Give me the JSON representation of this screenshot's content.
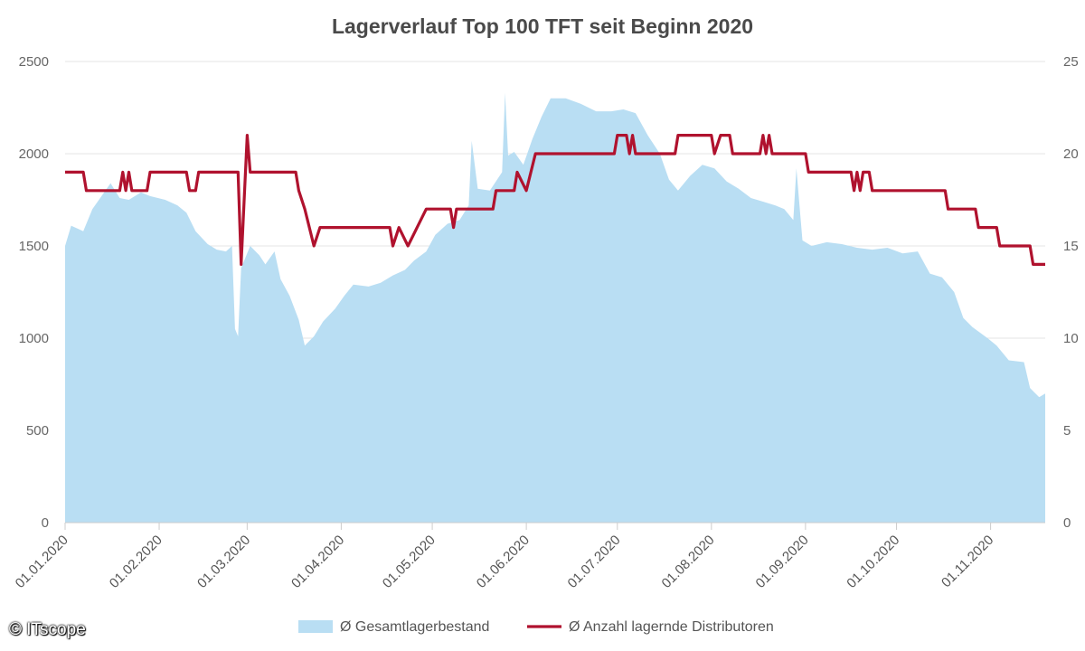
{
  "chart_data": {
    "type": "area+line",
    "title": "Lagerverlauf Top 100 TFT seit Beginn 2020",
    "x_start": "01.01.2020",
    "x_end": "19.11.2020",
    "x_ticks": [
      "01.01.2020",
      "01.02.2020",
      "01.03.2020",
      "01.04.2020",
      "01.05.2020",
      "01.06.2020",
      "01.07.2020",
      "01.08.2020",
      "01.09.2020",
      "01.10.2020",
      "01.11.2020"
    ],
    "y_left": {
      "min": 0,
      "max": 2500,
      "ticks": [
        0,
        500,
        1000,
        1500,
        2000,
        2500
      ]
    },
    "y_right": {
      "min": 0,
      "max": 25,
      "ticks": [
        0,
        5,
        10,
        15,
        20,
        25
      ]
    },
    "grid": true,
    "legend_position": "bottom",
    "series": [
      {
        "name": "Ø Gesamtlagerbestand",
        "type": "area",
        "axis": "left",
        "color": "#b9def3",
        "points": [
          [
            "01.01.2020",
            1500
          ],
          [
            "03.01.2020",
            1610
          ],
          [
            "07.01.2020",
            1580
          ],
          [
            "10.01.2020",
            1700
          ],
          [
            "13.01.2020",
            1770
          ],
          [
            "16.01.2020",
            1840
          ],
          [
            "19.01.2020",
            1760
          ],
          [
            "22.01.2020",
            1750
          ],
          [
            "26.01.2020",
            1790
          ],
          [
            "29.01.2020",
            1770
          ],
          [
            "03.02.2020",
            1750
          ],
          [
            "07.02.2020",
            1720
          ],
          [
            "10.02.2020",
            1680
          ],
          [
            "13.02.2020",
            1580
          ],
          [
            "17.02.2020",
            1510
          ],
          [
            "20.02.2020",
            1480
          ],
          [
            "23.02.2020",
            1470
          ],
          [
            "25.02.2020",
            1500
          ],
          [
            "26.02.2020",
            1050
          ],
          [
            "27.02.2020",
            1010
          ],
          [
            "28.02.2020",
            1380
          ],
          [
            "02.03.2020",
            1500
          ],
          [
            "05.03.2020",
            1450
          ],
          [
            "07.03.2020",
            1400
          ],
          [
            "10.03.2020",
            1470
          ],
          [
            "12.03.2020",
            1320
          ],
          [
            "15.03.2020",
            1230
          ],
          [
            "18.03.2020",
            1100
          ],
          [
            "20.03.2020",
            960
          ],
          [
            "23.03.2020",
            1010
          ],
          [
            "26.03.2020",
            1090
          ],
          [
            "30.03.2020",
            1160
          ],
          [
            "02.04.2020",
            1230
          ],
          [
            "05.04.2020",
            1290
          ],
          [
            "10.04.2020",
            1280
          ],
          [
            "14.04.2020",
            1300
          ],
          [
            "18.04.2020",
            1340
          ],
          [
            "22.04.2020",
            1370
          ],
          [
            "25.04.2020",
            1420
          ],
          [
            "29.04.2020",
            1470
          ],
          [
            "02.05.2020",
            1560
          ],
          [
            "06.05.2020",
            1620
          ],
          [
            "10.05.2020",
            1640
          ],
          [
            "13.05.2020",
            1720
          ],
          [
            "14.05.2020",
            2070
          ],
          [
            "16.05.2020",
            1810
          ],
          [
            "20.05.2020",
            1800
          ],
          [
            "24.05.2020",
            1900
          ],
          [
            "25.05.2020",
            2330
          ],
          [
            "26.05.2020",
            1990
          ],
          [
            "28.05.2020",
            2010
          ],
          [
            "31.05.2020",
            1940
          ],
          [
            "03.06.2020",
            2080
          ],
          [
            "06.06.2020",
            2200
          ],
          [
            "09.06.2020",
            2300
          ],
          [
            "14.06.2020",
            2300
          ],
          [
            "19.06.2020",
            2270
          ],
          [
            "24.06.2020",
            2230
          ],
          [
            "29.06.2020",
            2230
          ],
          [
            "03.07.2020",
            2240
          ],
          [
            "07.07.2020",
            2220
          ],
          [
            "11.07.2020",
            2100
          ],
          [
            "15.07.2020",
            2000
          ],
          [
            "18.07.2020",
            1860
          ],
          [
            "21.07.2020",
            1800
          ],
          [
            "25.07.2020",
            1880
          ],
          [
            "29.07.2020",
            1940
          ],
          [
            "02.08.2020",
            1920
          ],
          [
            "06.08.2020",
            1850
          ],
          [
            "10.08.2020",
            1810
          ],
          [
            "14.08.2020",
            1760
          ],
          [
            "18.08.2020",
            1740
          ],
          [
            "22.08.2020",
            1720
          ],
          [
            "25.08.2020",
            1700
          ],
          [
            "28.08.2020",
            1640
          ],
          [
            "29.08.2020",
            1920
          ],
          [
            "31.08.2020",
            1530
          ],
          [
            "03.09.2020",
            1500
          ],
          [
            "08.09.2020",
            1520
          ],
          [
            "13.09.2020",
            1510
          ],
          [
            "18.09.2020",
            1490
          ],
          [
            "23.09.2020",
            1480
          ],
          [
            "28.09.2020",
            1490
          ],
          [
            "03.10.2020",
            1460
          ],
          [
            "08.10.2020",
            1470
          ],
          [
            "12.10.2020",
            1350
          ],
          [
            "16.10.2020",
            1330
          ],
          [
            "20.10.2020",
            1250
          ],
          [
            "23.10.2020",
            1110
          ],
          [
            "26.10.2020",
            1060
          ],
          [
            "31.10.2020",
            1000
          ],
          [
            "03.11.2020",
            960
          ],
          [
            "07.11.2020",
            880
          ],
          [
            "12.11.2020",
            870
          ],
          [
            "14.11.2020",
            730
          ],
          [
            "17.11.2020",
            680
          ],
          [
            "19.11.2020",
            700
          ]
        ]
      },
      {
        "name": "Ø Anzahl lagernde Distributoren",
        "type": "line",
        "axis": "right",
        "color": "#b0122e",
        "points": [
          [
            "01.01.2020",
            19
          ],
          [
            "07.01.2020",
            19
          ],
          [
            "08.01.2020",
            18
          ],
          [
            "19.01.2020",
            18
          ],
          [
            "20.01.2020",
            19
          ],
          [
            "21.01.2020",
            18
          ],
          [
            "22.01.2020",
            19
          ],
          [
            "23.01.2020",
            18
          ],
          [
            "28.01.2020",
            18
          ],
          [
            "29.01.2020",
            19
          ],
          [
            "10.02.2020",
            19
          ],
          [
            "11.02.2020",
            18
          ],
          [
            "13.02.2020",
            18
          ],
          [
            "14.02.2020",
            19
          ],
          [
            "27.02.2020",
            19
          ],
          [
            "28.02.2020",
            14
          ],
          [
            "01.03.2020",
            21
          ],
          [
            "02.03.2020",
            19
          ],
          [
            "17.03.2020",
            19
          ],
          [
            "18.03.2020",
            18
          ],
          [
            "20.03.2020",
            17
          ],
          [
            "23.03.2020",
            15
          ],
          [
            "25.03.2020",
            16
          ],
          [
            "17.04.2020",
            16
          ],
          [
            "18.04.2020",
            15
          ],
          [
            "20.04.2020",
            16
          ],
          [
            "23.04.2020",
            15
          ],
          [
            "26.04.2020",
            16
          ],
          [
            "29.04.2020",
            17
          ],
          [
            "07.05.2020",
            17
          ],
          [
            "08.05.2020",
            16
          ],
          [
            "09.05.2020",
            17
          ],
          [
            "21.05.2020",
            17
          ],
          [
            "22.05.2020",
            18
          ],
          [
            "28.05.2020",
            18
          ],
          [
            "29.05.2020",
            19
          ],
          [
            "01.06.2020",
            18
          ],
          [
            "04.06.2020",
            20
          ],
          [
            "30.06.2020",
            20
          ],
          [
            "01.07.2020",
            21
          ],
          [
            "04.07.2020",
            21
          ],
          [
            "05.07.2020",
            20
          ],
          [
            "06.07.2020",
            21
          ],
          [
            "07.07.2020",
            20
          ],
          [
            "20.07.2020",
            20
          ],
          [
            "21.07.2020",
            21
          ],
          [
            "01.08.2020",
            21
          ],
          [
            "02.08.2020",
            20
          ],
          [
            "04.08.2020",
            21
          ],
          [
            "07.08.2020",
            21
          ],
          [
            "08.08.2020",
            20
          ],
          [
            "17.08.2020",
            20
          ],
          [
            "18.08.2020",
            21
          ],
          [
            "19.08.2020",
            20
          ],
          [
            "20.08.2020",
            21
          ],
          [
            "21.08.2020",
            20
          ],
          [
            "01.09.2020",
            20
          ],
          [
            "02.09.2020",
            19
          ],
          [
            "16.09.2020",
            19
          ],
          [
            "17.09.2020",
            18
          ],
          [
            "18.09.2020",
            19
          ],
          [
            "19.09.2020",
            18
          ],
          [
            "20.09.2020",
            19
          ],
          [
            "22.09.2020",
            19
          ],
          [
            "23.09.2020",
            18
          ],
          [
            "17.10.2020",
            18
          ],
          [
            "18.10.2020",
            17
          ],
          [
            "27.10.2020",
            17
          ],
          [
            "28.10.2020",
            16
          ],
          [
            "03.11.2020",
            16
          ],
          [
            "04.11.2020",
            15
          ],
          [
            "14.11.2020",
            15
          ],
          [
            "15.11.2020",
            14
          ],
          [
            "19.11.2020",
            14
          ]
        ]
      }
    ]
  },
  "footer": {
    "copyright": "© ITscope"
  }
}
